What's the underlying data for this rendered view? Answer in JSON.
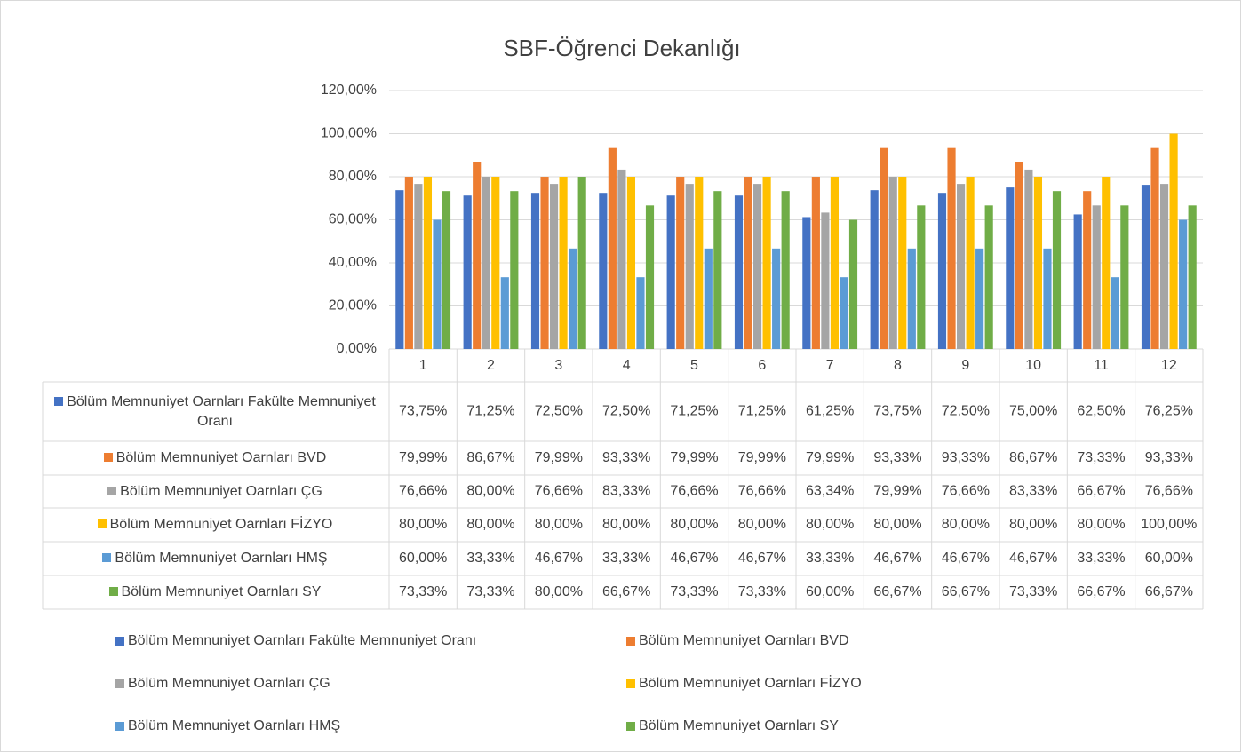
{
  "chart_data": {
    "type": "bar",
    "title": "SBF-Öğrenci Dekanlığı",
    "categories": [
      "1",
      "2",
      "3",
      "4",
      "5",
      "6",
      "7",
      "8",
      "9",
      "10",
      "11",
      "12"
    ],
    "ylim": [
      0,
      120
    ],
    "yticks": [
      {
        "value": 0,
        "label": "0,00%"
      },
      {
        "value": 20,
        "label": "20,00%"
      },
      {
        "value": 40,
        "label": "40,00%"
      },
      {
        "value": 60,
        "label": "60,00%"
      },
      {
        "value": 80,
        "label": "80,00%"
      },
      {
        "value": 100,
        "label": "100,00%"
      },
      {
        "value": 120,
        "label": "120,00%"
      }
    ],
    "grid": true,
    "series": [
      {
        "name": "Bölüm Memnuniyet Oarnları Fakülte Memnuniyet Oranı",
        "color": "#4472c4",
        "values": [
          73.75,
          71.25,
          72.5,
          72.5,
          71.25,
          71.25,
          61.25,
          73.75,
          72.5,
          75,
          62.5,
          76.25
        ],
        "value_labels": [
          "73,75%",
          "71,25%",
          "72,50%",
          "72,50%",
          "71,25%",
          "71,25%",
          "61,25%",
          "73,75%",
          "72,50%",
          "75,00%",
          "62,50%",
          "76,25%"
        ]
      },
      {
        "name": "Bölüm Memnuniyet Oarnları BVD",
        "color": "#ed7d31",
        "values": [
          79.99,
          86.67,
          79.99,
          93.33,
          79.99,
          79.99,
          79.99,
          93.33,
          93.33,
          86.67,
          73.33,
          93.33
        ],
        "value_labels": [
          "79,99%",
          "86,67%",
          "79,99%",
          "93,33%",
          "79,99%",
          "79,99%",
          "79,99%",
          "93,33%",
          "93,33%",
          "86,67%",
          "73,33%",
          "93,33%"
        ]
      },
      {
        "name": "Bölüm Memnuniyet Oarnları ÇG",
        "color": "#a5a5a5",
        "values": [
          76.66,
          80,
          76.66,
          83.33,
          76.66,
          76.66,
          63.34,
          79.99,
          76.66,
          83.33,
          66.67,
          76.66
        ],
        "value_labels": [
          "76,66%",
          "80,00%",
          "76,66%",
          "83,33%",
          "76,66%",
          "76,66%",
          "63,34%",
          "79,99%",
          "76,66%",
          "83,33%",
          "66,67%",
          "76,66%"
        ]
      },
      {
        "name": "Bölüm Memnuniyet Oarnları FİZYO",
        "color": "#ffc000",
        "values": [
          80,
          80,
          80,
          80,
          80,
          80,
          80,
          80,
          80,
          80,
          80,
          100
        ],
        "value_labels": [
          "80,00%",
          "80,00%",
          "80,00%",
          "80,00%",
          "80,00%",
          "80,00%",
          "80,00%",
          "80,00%",
          "80,00%",
          "80,00%",
          "80,00%",
          "100,00%"
        ]
      },
      {
        "name": "Bölüm Memnuniyet Oarnları HMŞ",
        "color": "#5b9bd5",
        "values": [
          60,
          33.33,
          46.67,
          33.33,
          46.67,
          46.67,
          33.33,
          46.67,
          46.67,
          46.67,
          33.33,
          60
        ],
        "value_labels": [
          "60,00%",
          "33,33%",
          "46,67%",
          "33,33%",
          "46,67%",
          "46,67%",
          "33,33%",
          "46,67%",
          "46,67%",
          "46,67%",
          "33,33%",
          "60,00%"
        ]
      },
      {
        "name": "Bölüm Memnuniyet Oarnları SY",
        "color": "#70ad47",
        "values": [
          73.33,
          73.33,
          80,
          66.67,
          73.33,
          73.33,
          60,
          66.67,
          66.67,
          73.33,
          66.67,
          66.67
        ],
        "value_labels": [
          "73,33%",
          "73,33%",
          "80,00%",
          "66,67%",
          "73,33%",
          "73,33%",
          "60,00%",
          "66,67%",
          "66,67%",
          "73,33%",
          "66,67%",
          "66,67%"
        ]
      }
    ]
  }
}
